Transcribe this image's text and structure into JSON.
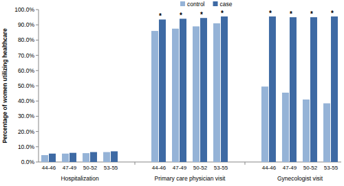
{
  "chart_data": {
    "type": "bar",
    "y_label": "Percentage of women utilizing healthcare",
    "categories": [
      "44-46",
      "47-49",
      "50-52",
      "53-55",
      "44-46",
      "47-49",
      "50-52",
      "53-55",
      "44-46",
      "47-49",
      "50-52",
      "53-55"
    ],
    "group_labels": [
      "Hospitalization",
      "Primary care physician visit",
      "Gynecologist visit"
    ],
    "series": [
      {
        "name": "control",
        "color": "#95b3d7",
        "values": [
          4.5,
          5.5,
          5.8,
          6.5,
          86.0,
          87.5,
          89.0,
          91.0,
          49.5,
          45.5,
          41.0,
          38.5
        ]
      },
      {
        "name": "case",
        "color": "#3e6aa4",
        "values": [
          5.5,
          6.0,
          6.5,
          7.0,
          93.5,
          94.0,
          94.5,
          95.5,
          95.5,
          95.0,
          95.0,
          95.5
        ]
      }
    ],
    "annotations": [
      {
        "text": "*",
        "category": 4
      },
      {
        "text": "*",
        "category": 5
      },
      {
        "text": "*",
        "category": 6
      },
      {
        "text": "*",
        "category": 7
      },
      {
        "text": "*",
        "category": 8
      },
      {
        "text": "*",
        "category": 9
      },
      {
        "text": "*",
        "category": 10
      },
      {
        "text": "*",
        "category": 11
      }
    ],
    "ylim": [
      0,
      100
    ],
    "yticks": [
      {
        "value": 0,
        "label": "0.0%"
      },
      {
        "value": 10,
        "label": "10.0%"
      },
      {
        "value": 20,
        "label": "20.0%"
      },
      {
        "value": 30,
        "label": "30.0%"
      },
      {
        "value": 40,
        "label": "40.0%"
      },
      {
        "value": 50,
        "label": "50.0%"
      },
      {
        "value": 60,
        "label": "60.0%"
      },
      {
        "value": 70,
        "label": "70.0%"
      },
      {
        "value": 80,
        "label": "80.0%"
      },
      {
        "value": 90,
        "label": "90.0%"
      },
      {
        "value": 100,
        "label": "100.0%"
      }
    ],
    "grid": false,
    "legend": "top"
  }
}
